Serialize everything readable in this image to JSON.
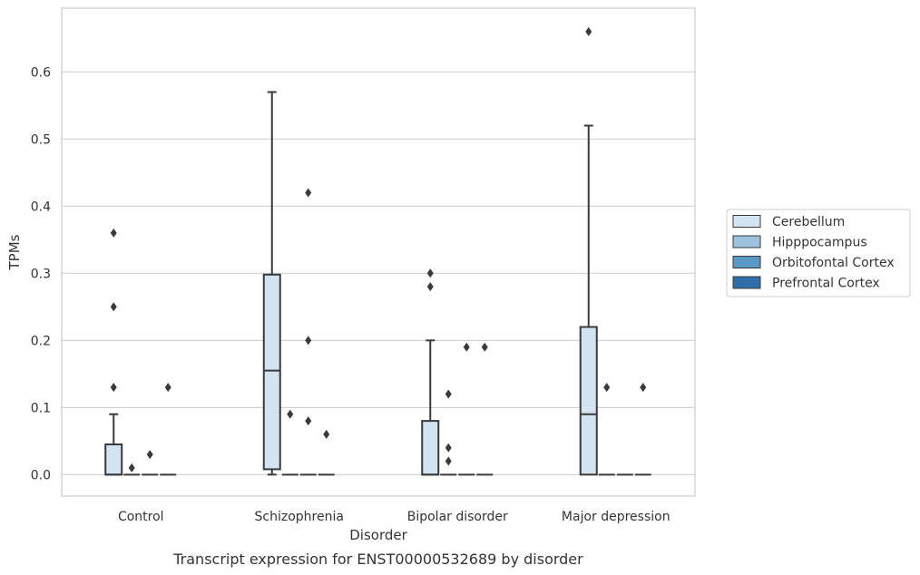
{
  "caption": "Transcript expression for ENST00000532689 by disorder",
  "chart_data": {
    "type": "box",
    "xlabel": "Disorder",
    "ylabel": "TPMs",
    "ylim": [
      -0.032,
      0.695
    ],
    "yticks": [
      0.0,
      0.1,
      0.2,
      0.3,
      0.4,
      0.5,
      0.6
    ],
    "ytick_labels": [
      "0.0",
      "0.1",
      "0.2",
      "0.3",
      "0.4",
      "0.5",
      "0.6"
    ],
    "grid": true,
    "legend_position": "right",
    "categories": [
      "Control",
      "Schizophrenia",
      "Bipolar disorder",
      "Major depression"
    ],
    "series": [
      {
        "name": "Cerebellum",
        "color": "#d4e3f1",
        "boxes": [
          {
            "q1": 0.0,
            "median": 0.0,
            "q3": 0.045,
            "whisker_low": 0.0,
            "whisker_high": 0.09,
            "outliers": [
              0.36,
              0.25,
              0.13
            ]
          },
          {
            "q1": 0.008,
            "median": 0.155,
            "q3": 0.298,
            "whisker_low": 0.0,
            "whisker_high": 0.57,
            "outliers": []
          },
          {
            "q1": 0.0,
            "median": 0.0,
            "q3": 0.08,
            "whisker_low": 0.0,
            "whisker_high": 0.2,
            "outliers": [
              0.3,
              0.28
            ]
          },
          {
            "q1": 0.0,
            "median": 0.09,
            "q3": 0.22,
            "whisker_low": 0.0,
            "whisker_high": 0.52,
            "outliers": [
              0.66
            ]
          }
        ]
      },
      {
        "name": "Hipppocampus",
        "color": "#9cc2dd",
        "boxes": [
          {
            "q1": 0.0,
            "median": 0.0,
            "q3": 0.0,
            "whisker_low": 0.0,
            "whisker_high": 0.0,
            "outliers": [
              0.01
            ]
          },
          {
            "q1": 0.0,
            "median": 0.0,
            "q3": 0.0,
            "whisker_low": 0.0,
            "whisker_high": 0.0,
            "outliers": [
              0.09
            ]
          },
          {
            "q1": 0.0,
            "median": 0.0,
            "q3": 0.0,
            "whisker_low": 0.0,
            "whisker_high": 0.0,
            "outliers": [
              0.12,
              0.04,
              0.02
            ]
          },
          {
            "q1": 0.0,
            "median": 0.0,
            "q3": 0.0,
            "whisker_low": 0.0,
            "whisker_high": 0.0,
            "outliers": [
              0.13
            ]
          }
        ]
      },
      {
        "name": "Orbitofontal Cortex",
        "color": "#5a98c6",
        "boxes": [
          {
            "q1": 0.0,
            "median": 0.0,
            "q3": 0.0,
            "whisker_low": 0.0,
            "whisker_high": 0.0,
            "outliers": [
              0.03
            ]
          },
          {
            "q1": 0.0,
            "median": 0.0,
            "q3": 0.0,
            "whisker_low": 0.0,
            "whisker_high": 0.0,
            "outliers": [
              0.42,
              0.2,
              0.08
            ]
          },
          {
            "q1": 0.0,
            "median": 0.0,
            "q3": 0.0,
            "whisker_low": 0.0,
            "whisker_high": 0.0,
            "outliers": [
              0.19
            ]
          },
          {
            "q1": 0.0,
            "median": 0.0,
            "q3": 0.0,
            "whisker_low": 0.0,
            "whisker_high": 0.0,
            "outliers": []
          }
        ]
      },
      {
        "name": "Prefrontal Cortex",
        "color": "#2f6ea8",
        "boxes": [
          {
            "q1": 0.0,
            "median": 0.0,
            "q3": 0.0,
            "whisker_low": 0.0,
            "whisker_high": 0.0,
            "outliers": [
              0.13
            ]
          },
          {
            "q1": 0.0,
            "median": 0.0,
            "q3": 0.0,
            "whisker_low": 0.0,
            "whisker_high": 0.0,
            "outliers": [
              0.06
            ]
          },
          {
            "q1": 0.0,
            "median": 0.0,
            "q3": 0.0,
            "whisker_low": 0.0,
            "whisker_high": 0.0,
            "outliers": [
              0.19
            ]
          },
          {
            "q1": 0.0,
            "median": 0.0,
            "q3": 0.0,
            "whisker_low": 0.0,
            "whisker_high": 0.0,
            "outliers": [
              0.13
            ]
          }
        ]
      }
    ]
  }
}
